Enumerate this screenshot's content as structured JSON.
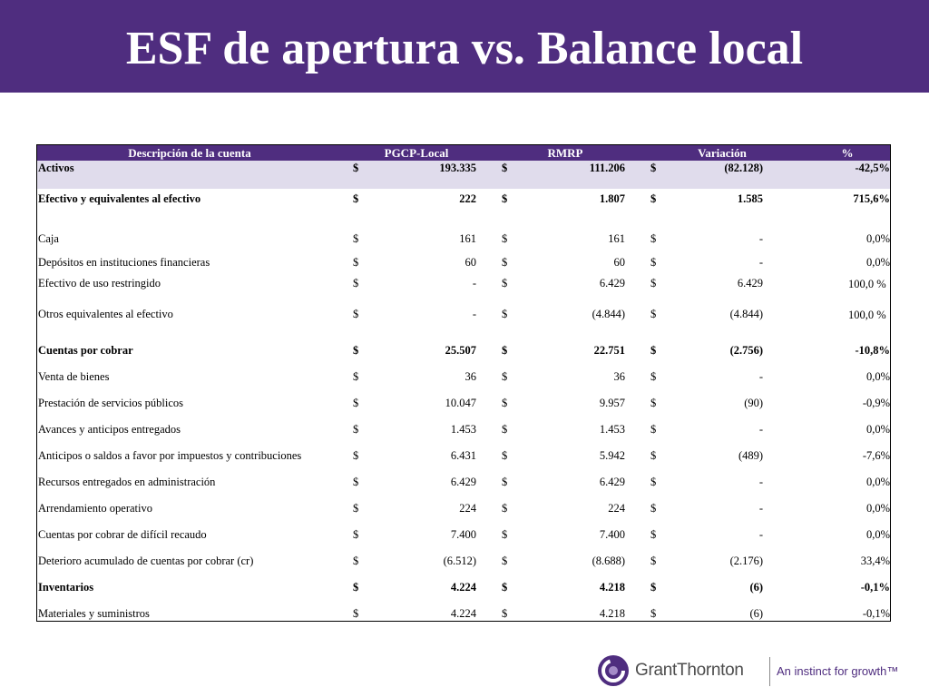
{
  "title": "ESF de apertura vs. Balance local",
  "table": {
    "headers": [
      "Descripción de la cuenta",
      "PGCP-Local",
      "RMRP",
      "Variación",
      "%"
    ],
    "rows": [
      {
        "desc": "Activos",
        "s1": "$",
        "pgcp": "193.335",
        "s2": "$",
        "rmrp": "111.206",
        "s3": "$",
        "var": "(82.128)",
        "pct": "-42,5%"
      },
      {
        "desc": "Efectivo y equivalentes al efectivo",
        "s1": "$",
        "pgcp": "222",
        "s2": "$",
        "rmrp": "1.807",
        "s3": "$",
        "var": "1.585",
        "pct": "715,6%"
      },
      {
        "desc": "Caja",
        "s1": "$",
        "pgcp": "161",
        "s2": "$",
        "rmrp": "161",
        "s3": "$",
        "var": "-",
        "pct": "0,0%"
      },
      {
        "desc": "Depósitos en instituciones financieras",
        "s1": "$",
        "pgcp": "60",
        "s2": "$",
        "rmrp": "60",
        "s3": "$",
        "var": "-",
        "pct": "0,0%"
      },
      {
        "desc": "Efectivo de uso restringido",
        "s1": "$",
        "pgcp": "-",
        "s2": "$",
        "rmrp": "6.429",
        "s3": "$",
        "var": "6.429",
        "pct": "100,0 %"
      },
      {
        "desc": "Otros equivalentes al efectivo",
        "s1": "$",
        "pgcp": "-",
        "s2": "$",
        "rmrp": "(4.844)",
        "s3": "$",
        "var": "(4.844)",
        "pct": "100,0 %"
      },
      {
        "desc": "Cuentas por cobrar",
        "s1": "$",
        "pgcp": "25.507",
        "s2": "$",
        "rmrp": "22.751",
        "s3": "$",
        "var": "(2.756)",
        "pct": "-10,8%"
      },
      {
        "desc": "Venta de bienes",
        "s1": "$",
        "pgcp": "36",
        "s2": "$",
        "rmrp": "36",
        "s3": "$",
        "var": "-",
        "pct": "0,0%"
      },
      {
        "desc": "Prestación de servicios públicos",
        "s1": "$",
        "pgcp": "10.047",
        "s2": "$",
        "rmrp": "9.957",
        "s3": "$",
        "var": "(90)",
        "pct": "-0,9%"
      },
      {
        "desc": "Avances y anticipos entregados",
        "s1": "$",
        "pgcp": "1.453",
        "s2": "$",
        "rmrp": "1.453",
        "s3": "$",
        "var": "-",
        "pct": "0,0%"
      },
      {
        "desc": "Anticipos o saldos a favor por impuestos y contribuciones",
        "s1": "$",
        "pgcp": "6.431",
        "s2": "$",
        "rmrp": "5.942",
        "s3": "$",
        "var": "(489)",
        "pct": "-7,6%"
      },
      {
        "desc": "Recursos entregados en administración",
        "s1": "$",
        "pgcp": "6.429",
        "s2": "$",
        "rmrp": "6.429",
        "s3": "$",
        "var": "-",
        "pct": "0,0%"
      },
      {
        "desc": "Arrendamiento operativo",
        "s1": "$",
        "pgcp": "224",
        "s2": "$",
        "rmrp": "224",
        "s3": "$",
        "var": "-",
        "pct": "0,0%"
      },
      {
        "desc": "Cuentas por cobrar de difícil recaudo",
        "s1": "$",
        "pgcp": "7.400",
        "s2": "$",
        "rmrp": "7.400",
        "s3": "$",
        "var": "-",
        "pct": "0,0%"
      },
      {
        "desc": "Deterioro acumulado de cuentas por cobrar (cr)",
        "s1": "$",
        "pgcp": "(6.512)",
        "s2": "$",
        "rmrp": "(8.688)",
        "s3": "$",
        "var": "(2.176)",
        "pct": "33,4%"
      },
      {
        "desc": "Inventarios",
        "s1": "$",
        "pgcp": "4.224",
        "s2": "$",
        "rmrp": "4.218",
        "s3": "$",
        "var": "(6)",
        "pct": "-0,1%"
      },
      {
        "desc": "Materiales y suministros",
        "s1": "$",
        "pgcp": "4.224",
        "s2": "$",
        "rmrp": "4.218",
        "s3": "$",
        "var": "(6)",
        "pct": "-0,1%"
      }
    ]
  },
  "logo": {
    "name": "GrantThornton",
    "tagline": "An instinct for growth™"
  },
  "colors": {
    "brand_purple": "#4f2d7f",
    "highlight_row": "#e0dcec"
  }
}
